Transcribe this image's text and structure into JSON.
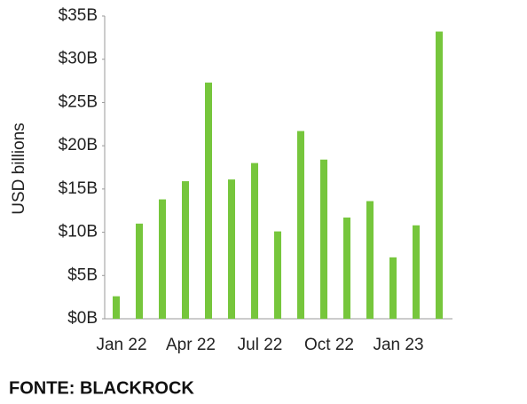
{
  "chart_data": {
    "type": "bar",
    "y_label": "USD billions",
    "source": "FONTE: BLACKROCK",
    "categories": [
      "Jan 22",
      null,
      null,
      "Apr 22",
      null,
      null,
      "Jul 22",
      null,
      null,
      "Oct 22",
      null,
      null,
      "Jan 23",
      null,
      null
    ],
    "values": [
      2.6,
      11.0,
      13.8,
      15.9,
      27.3,
      16.1,
      18.0,
      10.1,
      21.7,
      18.4,
      11.7,
      13.6,
      7.1,
      10.8,
      33.2
    ],
    "color": "#76c63c",
    "ylim": [
      0,
      35
    ],
    "yticks": [
      {
        "value": 0,
        "label": "$0B"
      },
      {
        "value": 5,
        "label": "$5B"
      },
      {
        "value": 10,
        "label": "$10B"
      },
      {
        "value": 15,
        "label": "$15B"
      },
      {
        "value": 20,
        "label": "$20B"
      },
      {
        "value": 25,
        "label": "$25B"
      },
      {
        "value": 30,
        "label": "$30B"
      },
      {
        "value": 35,
        "label": "$35B"
      }
    ],
    "grid": false
  }
}
